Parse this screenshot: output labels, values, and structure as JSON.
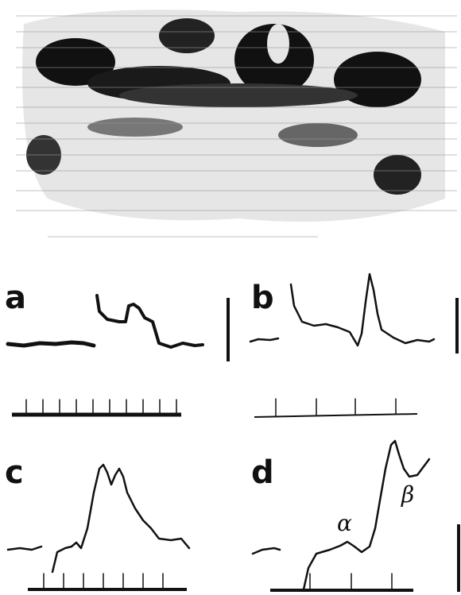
{
  "panels": [
    {
      "label": "a"
    },
    {
      "label": "b"
    },
    {
      "label": "c"
    },
    {
      "label": "d"
    }
  ],
  "annotations": {
    "alpha": "α",
    "beta": "β"
  }
}
